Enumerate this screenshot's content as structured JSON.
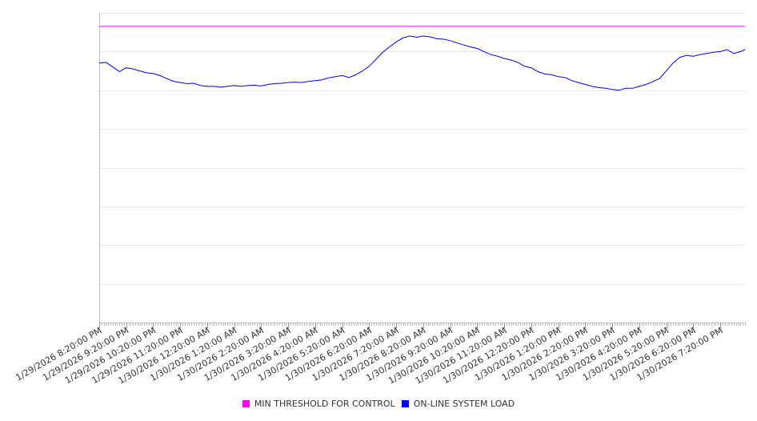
{
  "chart_data": {
    "type": "line",
    "title": "",
    "xlabel": "",
    "ylabel": "",
    "y_tick_labels_visible": false,
    "grid": "horizontal",
    "legend_placement": "bottom-center",
    "x_tick_labels": [
      "1/29/2026 8:20:00 PM",
      "1/29/2026 9:20:00 PM",
      "1/29/2026 10:20:00 PM",
      "1/29/2026 11:20:00 PM",
      "1/30/2026 12:20:00 AM",
      "1/30/2026 1:20:00 AM",
      "1/30/2026 2:20:00 AM",
      "1/30/2026 3:20:00 AM",
      "1/30/2026 4:20:00 AM",
      "1/30/2026 5:20:00 AM",
      "1/30/2026 6:20:00 AM",
      "1/30/2026 7:20:00 AM",
      "1/30/2026 8:20:00 AM",
      "1/30/2026 9:20:00 AM",
      "1/30/2026 10:20:00 AM",
      "1/30/2026 11:20:00 AM",
      "1/30/2026 12:20:00 PM",
      "1/30/2026 1:20:00 PM",
      "1/30/2026 2:20:00 PM",
      "1/30/2026 3:20:00 PM",
      "1/30/2026 4:20:00 PM",
      "1/30/2026 5:20:00 PM",
      "1/30/2026 6:20:00 PM",
      "1/30/2026 7:20:00 PM"
    ],
    "x_range": [
      "1/29/2026 8:20:00 PM",
      "1/30/2026 8:15:00 PM"
    ],
    "y_range": [
      0,
      8
    ],
    "minor_ticks_per_label": 12,
    "series": [
      {
        "name": "MIN THRESHOLD FOR CONTROL",
        "color": "#ff00ff",
        "x": [
          "1/29/2026 8:20:00 PM",
          "1/30/2026 8:15:00 PM"
        ],
        "y": [
          7.65,
          7.65
        ]
      },
      {
        "name": "ON-LINE SYSTEM LOAD",
        "color": "#0000ff",
        "x": [
          "1/29/2026 8:20:00 PM",
          "1/29/2026 8:35:00 PM",
          "1/29/2026 8:50:00 PM",
          "1/29/2026 9:05:00 PM",
          "1/29/2026 9:20:00 PM",
          "1/29/2026 9:35:00 PM",
          "1/29/2026 9:50:00 PM",
          "1/29/2026 10:05:00 PM",
          "1/29/2026 10:20:00 PM",
          "1/29/2026 10:35:00 PM",
          "1/29/2026 10:50:00 PM",
          "1/29/2026 11:05:00 PM",
          "1/29/2026 11:20:00 PM",
          "1/29/2026 11:35:00 PM",
          "1/29/2026 11:50:00 PM",
          "1/30/2026 12:05:00 AM",
          "1/30/2026 12:20:00 AM",
          "1/30/2026 12:35:00 AM",
          "1/30/2026 12:50:00 AM",
          "1/30/2026 1:05:00 AM",
          "1/30/2026 1:20:00 AM",
          "1/30/2026 1:35:00 AM",
          "1/30/2026 1:50:00 AM",
          "1/30/2026 2:05:00 AM",
          "1/30/2026 2:20:00 AM",
          "1/30/2026 2:35:00 AM",
          "1/30/2026 2:50:00 AM",
          "1/30/2026 3:05:00 AM",
          "1/30/2026 3:20:00 AM",
          "1/30/2026 3:35:00 AM",
          "1/30/2026 3:50:00 AM",
          "1/30/2026 4:05:00 AM",
          "1/30/2026 4:20:00 AM",
          "1/30/2026 4:35:00 AM",
          "1/30/2026 4:50:00 AM",
          "1/30/2026 5:05:00 AM",
          "1/30/2026 5:20:00 AM",
          "1/30/2026 5:35:00 AM",
          "1/30/2026 5:50:00 AM",
          "1/30/2026 6:05:00 AM",
          "1/30/2026 6:20:00 AM",
          "1/30/2026 6:35:00 AM",
          "1/30/2026 6:50:00 AM",
          "1/30/2026 7:05:00 AM",
          "1/30/2026 7:20:00 AM",
          "1/30/2026 7:35:00 AM",
          "1/30/2026 7:50:00 AM",
          "1/30/2026 8:05:00 AM",
          "1/30/2026 8:20:00 AM",
          "1/30/2026 8:35:00 AM",
          "1/30/2026 8:50:00 AM",
          "1/30/2026 9:05:00 AM",
          "1/30/2026 9:20:00 AM",
          "1/30/2026 9:35:00 AM",
          "1/30/2026 9:50:00 AM",
          "1/30/2026 10:05:00 AM",
          "1/30/2026 10:20:00 AM",
          "1/30/2026 10:35:00 AM",
          "1/30/2026 10:50:00 AM",
          "1/30/2026 11:05:00 AM",
          "1/30/2026 11:20:00 AM",
          "1/30/2026 11:35:00 AM",
          "1/30/2026 11:50:00 AM",
          "1/30/2026 12:05:00 PM",
          "1/30/2026 12:20:00 PM",
          "1/30/2026 12:35:00 PM",
          "1/30/2026 12:50:00 PM",
          "1/30/2026 1:05:00 PM",
          "1/30/2026 1:20:00 PM",
          "1/30/2026 1:35:00 PM",
          "1/30/2026 1:50:00 PM",
          "1/30/2026 2:05:00 PM",
          "1/30/2026 2:20:00 PM",
          "1/30/2026 2:35:00 PM",
          "1/30/2026 2:50:00 PM",
          "1/30/2026 3:05:00 PM",
          "1/30/2026 3:20:00 PM",
          "1/30/2026 3:35:00 PM",
          "1/30/2026 3:50:00 PM",
          "1/30/2026 4:05:00 PM",
          "1/30/2026 4:20:00 PM",
          "1/30/2026 4:35:00 PM",
          "1/30/2026 4:50:00 PM",
          "1/30/2026 5:05:00 PM",
          "1/30/2026 5:20:00 PM",
          "1/30/2026 5:35:00 PM",
          "1/30/2026 5:50:00 PM",
          "1/30/2026 6:05:00 PM",
          "1/30/2026 6:20:00 PM",
          "1/30/2026 6:35:00 PM",
          "1/30/2026 6:50:00 PM",
          "1/30/2026 7:05:00 PM",
          "1/30/2026 7:20:00 PM",
          "1/30/2026 7:35:00 PM",
          "1/30/2026 7:50:00 PM",
          "1/30/2026 8:05:00 PM",
          "1/30/2026 8:15:00 PM"
        ],
        "y": [
          6.7,
          6.72,
          6.6,
          6.48,
          6.58,
          6.55,
          6.5,
          6.45,
          6.43,
          6.38,
          6.3,
          6.23,
          6.2,
          6.17,
          6.18,
          6.12,
          6.1,
          6.1,
          6.08,
          6.1,
          6.12,
          6.1,
          6.12,
          6.13,
          6.11,
          6.15,
          6.17,
          6.18,
          6.2,
          6.21,
          6.2,
          6.23,
          6.25,
          6.27,
          6.32,
          6.35,
          6.38,
          6.33,
          6.4,
          6.5,
          6.62,
          6.8,
          6.98,
          7.12,
          7.25,
          7.35,
          7.4,
          7.37,
          7.4,
          7.38,
          7.33,
          7.32,
          7.28,
          7.22,
          7.17,
          7.12,
          7.08,
          7.0,
          6.92,
          6.88,
          6.82,
          6.78,
          6.72,
          6.62,
          6.58,
          6.48,
          6.42,
          6.4,
          6.35,
          6.33,
          6.25,
          6.2,
          6.15,
          6.1,
          6.07,
          6.05,
          6.02,
          6.0,
          6.05,
          6.05,
          6.1,
          6.15,
          6.22,
          6.3,
          6.5,
          6.7,
          6.85,
          6.9,
          6.88,
          6.92,
          6.95,
          6.98,
          7.0,
          7.05,
          6.95,
          7.0,
          7.05
        ]
      }
    ]
  }
}
